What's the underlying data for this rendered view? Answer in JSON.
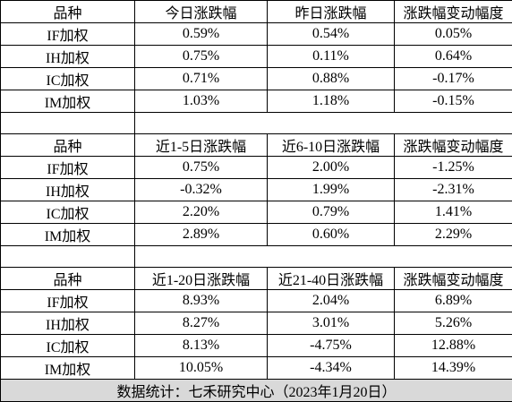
{
  "sections": [
    {
      "header": [
        "品种",
        "今日涨跌幅",
        "昨日涨跌幅",
        "涨跌幅变动幅度"
      ],
      "rows": [
        [
          "IF加权",
          "0.59%",
          "0.54%",
          "0.05%"
        ],
        [
          "IH加权",
          "0.75%",
          "0.11%",
          "0.64%"
        ],
        [
          "IC加权",
          "0.71%",
          "0.88%",
          "-0.17%"
        ],
        [
          "IM加权",
          "1.03%",
          "1.18%",
          "-0.15%"
        ]
      ]
    },
    {
      "header": [
        "品种",
        "近1-5日涨跌幅",
        "近6-10日涨跌幅",
        "涨跌幅变动幅度"
      ],
      "rows": [
        [
          "IF加权",
          "0.75%",
          "2.00%",
          "-1.25%"
        ],
        [
          "IH加权",
          "-0.32%",
          "1.99%",
          "-2.31%"
        ],
        [
          "IC加权",
          "2.20%",
          "0.79%",
          "1.41%"
        ],
        [
          "IM加权",
          "2.89%",
          "0.60%",
          "2.29%"
        ]
      ]
    },
    {
      "header": [
        "品种",
        "近1-20日涨跌幅",
        "近21-40日涨跌幅",
        "涨跌幅变动幅度"
      ],
      "rows": [
        [
          "IF加权",
          "8.93%",
          "2.04%",
          "6.89%"
        ],
        [
          "IH加权",
          "8.27%",
          "3.01%",
          "5.26%"
        ],
        [
          "IC加权",
          "8.13%",
          "-4.75%",
          "12.88%"
        ],
        [
          "IM加权",
          "10.05%",
          "-4.34%",
          "14.39%"
        ]
      ]
    }
  ],
  "footer": "数据统计：七禾研究中心（2023年1月20日）"
}
